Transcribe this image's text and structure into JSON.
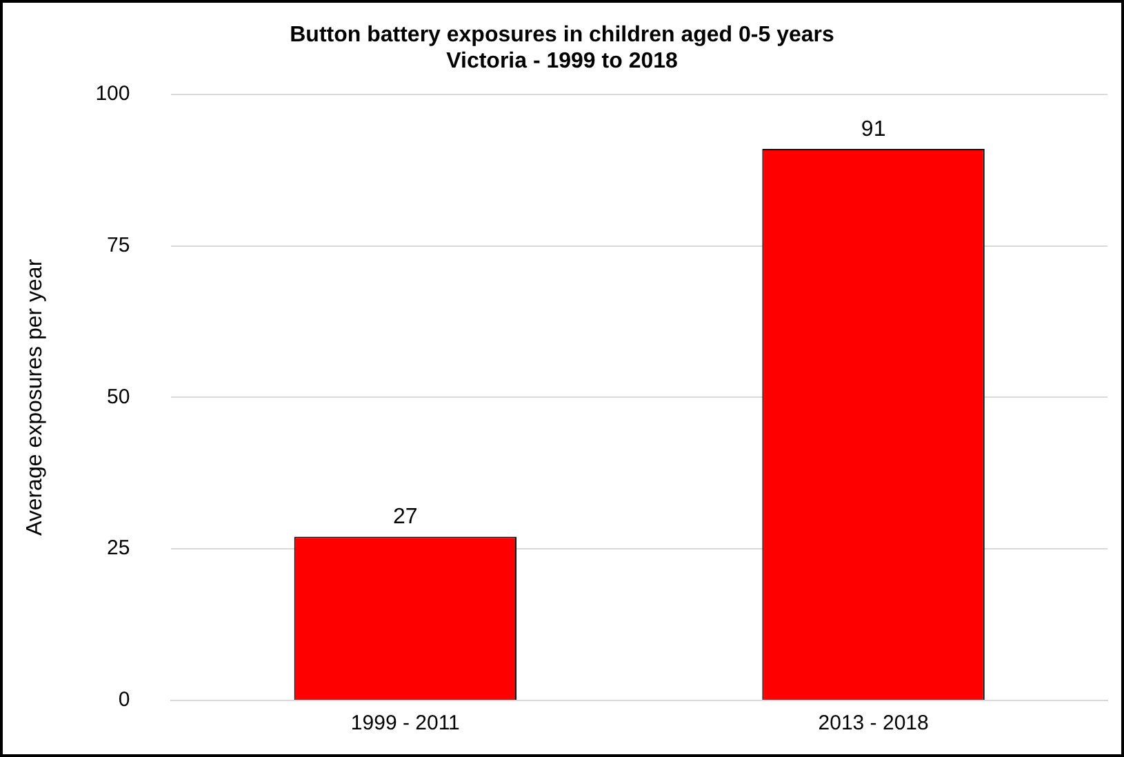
{
  "chart_data": {
    "type": "bar",
    "title": "Button battery exposures in children aged 0-5 years\nVictoria - 1999 to 2018",
    "ylabel": "Average exposures per year",
    "categories": [
      "1999 - 2011",
      "2013 - 2018"
    ],
    "values": [
      27,
      91
    ],
    "color": "#ff0000",
    "ylim": [
      0,
      100
    ],
    "yticks": [
      0,
      25,
      50,
      75,
      100
    ],
    "grid": "y",
    "data_labels": true,
    "legend": false
  }
}
